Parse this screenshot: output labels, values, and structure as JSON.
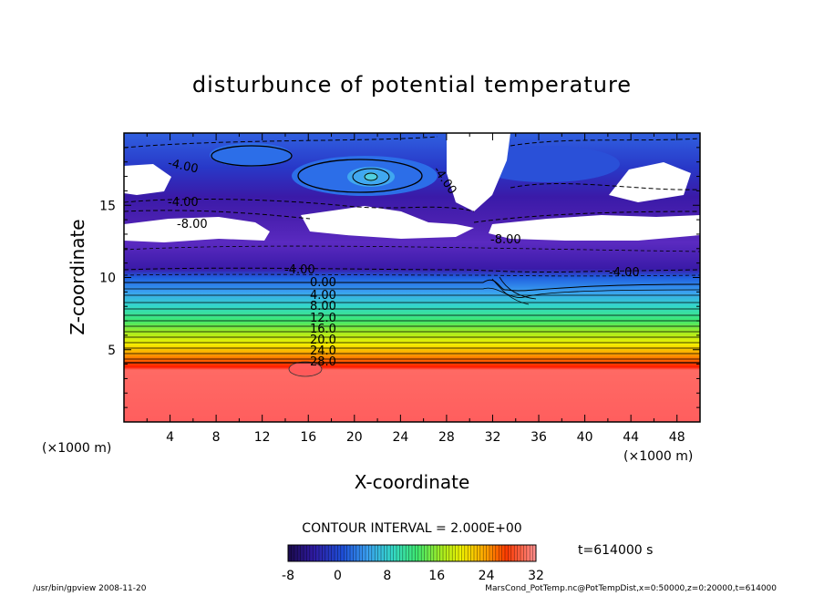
{
  "chart_data": {
    "type": "heatmap",
    "title": "disturbunce of potential temperature",
    "xlabel": "X-coordinate",
    "ylabel": "Z-coordinate",
    "x_unit_left": "(×1000 m)",
    "x_unit_right": "(×1000 m)",
    "xlim": [
      0,
      50
    ],
    "ylim": [
      0,
      20
    ],
    "xticks": [
      "4",
      "8",
      "12",
      "16",
      "20",
      "24",
      "28",
      "32",
      "36",
      "40",
      "44",
      "48"
    ],
    "yticks": [
      "5",
      "10",
      "15"
    ],
    "contour_labels": [
      "-4.00",
      "-4.00",
      "-8.00",
      "-4.00",
      "-8.00",
      "-4.00",
      "-4.00",
      "0.00",
      "4.00",
      "8.00",
      "12.0",
      "16.0",
      "20.0",
      "24.0",
      "28.0"
    ],
    "contour_interval_text": "CONTOUR INTERVAL = 2.000E+00",
    "time_text": "t=614000  s",
    "colorbar": {
      "min": -8,
      "max": 32,
      "ticks": [
        "-8",
        "0",
        "8",
        "16",
        "24",
        "32"
      ],
      "colors": [
        "#2a0a5e",
        "#2e1aa0",
        "#1e4fd8",
        "#3aa0f0",
        "#34d8c8",
        "#3ee870",
        "#a6ec20",
        "#f0f000",
        "#ffa000",
        "#ff3a00",
        "#ff6a6a"
      ]
    }
  },
  "footer": {
    "left": "/usr/bin/gpview   2008-11-20",
    "right": "MarsCond_PotTemp.nc@PotTempDist,x=0:50000,z=0:20000,t=614000"
  }
}
